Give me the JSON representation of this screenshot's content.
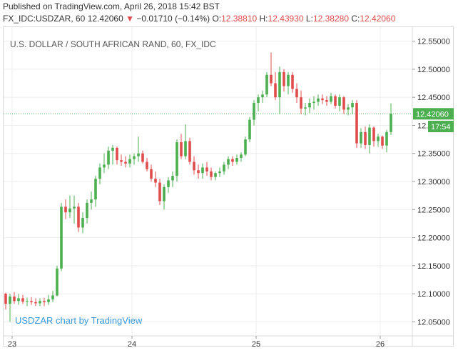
{
  "header": {
    "published": "Published on TradingView.com, April 26, 2018 15:42 BST",
    "symbol": "FX_IDC:USDZAR, 60",
    "last": "12.42060",
    "arrow": "▼",
    "change": "−0.01710 (−0.14%)",
    "o_label": "O:",
    "o_value": "12.38810",
    "h_label": "H:",
    "h_value": "12.43930",
    "l_label": "L:",
    "l_value": "12.38280",
    "c_label": "C:",
    "c_value": "12.42060"
  },
  "chart_title": "U.S. DOLLAR / SOUTH AFRICAN RAND, 60, FX_IDC",
  "watermark": "USDZAR chart by TradingView",
  "colors": {
    "up": "#4caf50",
    "down": "#e04c4c",
    "last_price": "#4caf50",
    "axis_text": "#333333"
  },
  "chart_data": {
    "type": "candlestick",
    "y_axis_position": "right",
    "ylim": [
      12.025,
      12.575
    ],
    "yticks": [
      "12.55000",
      "12.50000",
      "12.45000",
      "12.40000",
      "12.35000",
      "12.30000",
      "12.25000",
      "12.20000",
      "12.15000",
      "12.10000",
      "12.05000"
    ],
    "ytick_values": [
      12.55,
      12.5,
      12.45,
      12.4,
      12.35,
      12.3,
      12.25,
      12.2,
      12.15,
      12.1,
      12.05
    ],
    "x_labels": [
      {
        "label": "23",
        "bar": 1.5
      },
      {
        "label": "24",
        "bar": 29.5
      },
      {
        "label": "25",
        "bar": 58.5
      },
      {
        "label": "26",
        "bar": 87.5
      }
    ],
    "last_price_label": "12.42060",
    "last_price": 12.4206,
    "countdown_label": "17:54",
    "countdown_value": 12.398,
    "candles": [
      {
        "o": 12.1,
        "h": 12.102,
        "l": 12.072,
        "c": 12.082
      },
      {
        "o": 12.082,
        "h": 12.1,
        "l": 12.05,
        "c": 12.095
      },
      {
        "o": 12.095,
        "h": 12.103,
        "l": 12.082,
        "c": 12.087
      },
      {
        "o": 12.087,
        "h": 12.1,
        "l": 12.08,
        "c": 12.092
      },
      {
        "o": 12.092,
        "h": 12.098,
        "l": 12.082,
        "c": 12.086
      },
      {
        "o": 12.086,
        "h": 12.093,
        "l": 12.078,
        "c": 12.087
      },
      {
        "o": 12.087,
        "h": 12.094,
        "l": 12.08,
        "c": 12.085
      },
      {
        "o": 12.085,
        "h": 12.092,
        "l": 12.078,
        "c": 12.083
      },
      {
        "o": 12.083,
        "h": 12.092,
        "l": 12.078,
        "c": 12.087
      },
      {
        "o": 12.087,
        "h": 12.093,
        "l": 12.078,
        "c": 12.085
      },
      {
        "o": 12.085,
        "h": 12.098,
        "l": 12.08,
        "c": 12.09
      },
      {
        "o": 12.09,
        "h": 12.105,
        "l": 12.085,
        "c": 12.097
      },
      {
        "o": 12.097,
        "h": 12.15,
        "l": 12.095,
        "c": 12.145
      },
      {
        "o": 12.145,
        "h": 12.262,
        "l": 12.14,
        "c": 12.255
      },
      {
        "o": 12.255,
        "h": 12.268,
        "l": 12.233,
        "c": 12.245
      },
      {
        "o": 12.245,
        "h": 12.275,
        "l": 12.235,
        "c": 12.252
      },
      {
        "o": 12.252,
        "h": 12.275,
        "l": 12.225,
        "c": 12.255
      },
      {
        "o": 12.255,
        "h": 12.262,
        "l": 12.21,
        "c": 12.218
      },
      {
        "o": 12.218,
        "h": 12.245,
        "l": 12.208,
        "c": 12.235
      },
      {
        "o": 12.235,
        "h": 12.268,
        "l": 12.225,
        "c": 12.262
      },
      {
        "o": 12.262,
        "h": 12.282,
        "l": 12.25,
        "c": 12.268
      },
      {
        "o": 12.268,
        "h": 12.31,
        "l": 12.255,
        "c": 12.305
      },
      {
        "o": 12.305,
        "h": 12.332,
        "l": 12.295,
        "c": 12.325
      },
      {
        "o": 12.325,
        "h": 12.35,
        "l": 12.315,
        "c": 12.33
      },
      {
        "o": 12.33,
        "h": 12.362,
        "l": 12.322,
        "c": 12.355
      },
      {
        "o": 12.355,
        "h": 12.365,
        "l": 12.33,
        "c": 12.36
      },
      {
        "o": 12.36,
        "h": 12.362,
        "l": 12.33,
        "c": 12.338
      },
      {
        "o": 12.338,
        "h": 12.348,
        "l": 12.328,
        "c": 12.335
      },
      {
        "o": 12.335,
        "h": 12.345,
        "l": 12.325,
        "c": 12.332
      },
      {
        "o": 12.332,
        "h": 12.348,
        "l": 12.325,
        "c": 12.34
      },
      {
        "o": 12.34,
        "h": 12.35,
        "l": 12.33,
        "c": 12.345
      },
      {
        "o": 12.345,
        "h": 12.38,
        "l": 12.335,
        "c": 12.35
      },
      {
        "o": 12.35,
        "h": 12.355,
        "l": 12.332,
        "c": 12.335
      },
      {
        "o": 12.335,
        "h": 12.342,
        "l": 12.318,
        "c": 12.322
      },
      {
        "o": 12.322,
        "h": 12.33,
        "l": 12.3,
        "c": 12.305
      },
      {
        "o": 12.305,
        "h": 12.318,
        "l": 12.29,
        "c": 12.298
      },
      {
        "o": 12.298,
        "h": 12.305,
        "l": 12.258,
        "c": 12.265
      },
      {
        "o": 12.265,
        "h": 12.295,
        "l": 12.25,
        "c": 12.29
      },
      {
        "o": 12.29,
        "h": 12.308,
        "l": 12.28,
        "c": 12.302
      },
      {
        "o": 12.302,
        "h": 12.318,
        "l": 12.29,
        "c": 12.31
      },
      {
        "o": 12.31,
        "h": 12.375,
        "l": 12.3,
        "c": 12.37
      },
      {
        "o": 12.37,
        "h": 12.385,
        "l": 12.34,
        "c": 12.345
      },
      {
        "o": 12.345,
        "h": 12.402,
        "l": 12.34,
        "c": 12.372
      },
      {
        "o": 12.372,
        "h": 12.378,
        "l": 12.33,
        "c": 12.335
      },
      {
        "o": 12.335,
        "h": 12.345,
        "l": 12.312,
        "c": 12.32
      },
      {
        "o": 12.32,
        "h": 12.33,
        "l": 12.305,
        "c": 12.315
      },
      {
        "o": 12.315,
        "h": 12.332,
        "l": 12.305,
        "c": 12.325
      },
      {
        "o": 12.325,
        "h": 12.335,
        "l": 12.31,
        "c": 12.318
      },
      {
        "o": 12.318,
        "h": 12.325,
        "l": 12.302,
        "c": 12.308
      },
      {
        "o": 12.308,
        "h": 12.318,
        "l": 12.302,
        "c": 12.315
      },
      {
        "o": 12.315,
        "h": 12.325,
        "l": 12.308,
        "c": 12.318
      },
      {
        "o": 12.318,
        "h": 12.335,
        "l": 12.312,
        "c": 12.33
      },
      {
        "o": 12.33,
        "h": 12.345,
        "l": 12.322,
        "c": 12.34
      },
      {
        "o": 12.34,
        "h": 12.345,
        "l": 12.328,
        "c": 12.335
      },
      {
        "o": 12.335,
        "h": 12.348,
        "l": 12.33,
        "c": 12.342
      },
      {
        "o": 12.342,
        "h": 12.352,
        "l": 12.335,
        "c": 12.348
      },
      {
        "o": 12.348,
        "h": 12.38,
        "l": 12.345,
        "c": 12.375
      },
      {
        "o": 12.375,
        "h": 12.415,
        "l": 12.37,
        "c": 12.41
      },
      {
        "o": 12.41,
        "h": 12.445,
        "l": 12.4,
        "c": 12.44
      },
      {
        "o": 12.44,
        "h": 12.455,
        "l": 12.425,
        "c": 12.45
      },
      {
        "o": 12.45,
        "h": 12.462,
        "l": 12.44,
        "c": 12.455
      },
      {
        "o": 12.455,
        "h": 12.495,
        "l": 12.45,
        "c": 12.49
      },
      {
        "o": 12.49,
        "h": 12.53,
        "l": 12.47,
        "c": 12.475
      },
      {
        "o": 12.475,
        "h": 12.495,
        "l": 12.445,
        "c": 12.45
      },
      {
        "o": 12.45,
        "h": 12.505,
        "l": 12.42,
        "c": 12.495
      },
      {
        "o": 12.495,
        "h": 12.5,
        "l": 12.46,
        "c": 12.47
      },
      {
        "o": 12.47,
        "h": 12.495,
        "l": 12.455,
        "c": 12.49
      },
      {
        "o": 12.49,
        "h": 12.495,
        "l": 12.458,
        "c": 12.465
      },
      {
        "o": 12.465,
        "h": 12.475,
        "l": 12.44,
        "c": 12.45
      },
      {
        "o": 12.45,
        "h": 12.462,
        "l": 12.42,
        "c": 12.43
      },
      {
        "o": 12.43,
        "h": 12.44,
        "l": 12.418,
        "c": 12.432
      },
      {
        "o": 12.432,
        "h": 12.448,
        "l": 12.422,
        "c": 12.44
      },
      {
        "o": 12.44,
        "h": 12.452,
        "l": 12.428,
        "c": 12.442
      },
      {
        "o": 12.442,
        "h": 12.455,
        "l": 12.435,
        "c": 12.448
      },
      {
        "o": 12.448,
        "h": 12.455,
        "l": 12.438,
        "c": 12.445
      },
      {
        "o": 12.445,
        "h": 12.452,
        "l": 12.435,
        "c": 12.442
      },
      {
        "o": 12.442,
        "h": 12.458,
        "l": 12.438,
        "c": 12.452
      },
      {
        "o": 12.452,
        "h": 12.455,
        "l": 12.43,
        "c": 12.435
      },
      {
        "o": 12.435,
        "h": 12.455,
        "l": 12.425,
        "c": 12.45
      },
      {
        "o": 12.45,
        "h": 12.452,
        "l": 12.42,
        "c": 12.428
      },
      {
        "o": 12.428,
        "h": 12.438,
        "l": 12.418,
        "c": 12.432
      },
      {
        "o": 12.432,
        "h": 12.445,
        "l": 12.42,
        "c": 12.44
      },
      {
        "o": 12.44,
        "h": 12.445,
        "l": 12.36,
        "c": 12.368
      },
      {
        "o": 12.368,
        "h": 12.395,
        "l": 12.36,
        "c": 12.388
      },
      {
        "o": 12.388,
        "h": 12.398,
        "l": 12.358,
        "c": 12.365
      },
      {
        "o": 12.365,
        "h": 12.402,
        "l": 12.35,
        "c": 12.396
      },
      {
        "o": 12.396,
        "h": 12.398,
        "l": 12.362,
        "c": 12.372
      },
      {
        "o": 12.372,
        "h": 12.385,
        "l": 12.362,
        "c": 12.38
      },
      {
        "o": 12.38,
        "h": 12.382,
        "l": 12.358,
        "c": 12.364
      },
      {
        "o": 12.364,
        "h": 12.392,
        "l": 12.352,
        "c": 12.388
      },
      {
        "o": 12.3881,
        "h": 12.4393,
        "l": 12.3828,
        "c": 12.4206
      }
    ]
  }
}
